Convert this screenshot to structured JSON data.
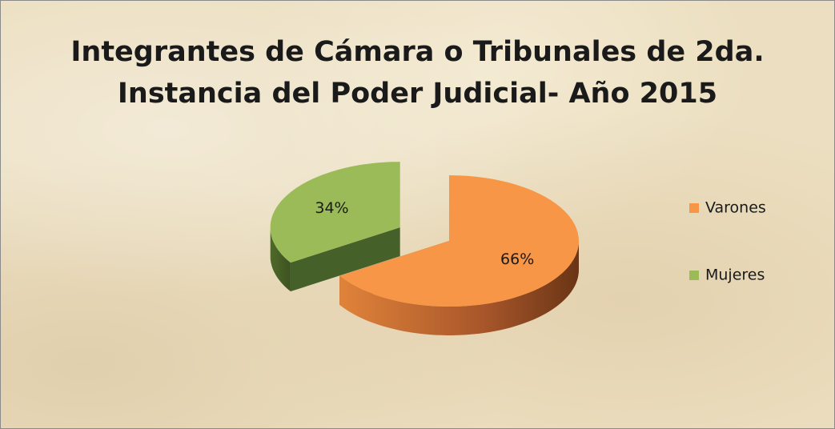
{
  "chart_data": {
    "type": "pie",
    "title": "Integrantes de Cámara o Tribunales de 2da.\nInstancia del Poder Judicial- Año 2015",
    "categories": [
      "Varones",
      "Mujeres"
    ],
    "values": [
      66,
      34
    ],
    "value_labels": [
      "66%",
      "34%"
    ],
    "colors": [
      "#f79646",
      "#9bbb59"
    ],
    "legend": "right"
  }
}
